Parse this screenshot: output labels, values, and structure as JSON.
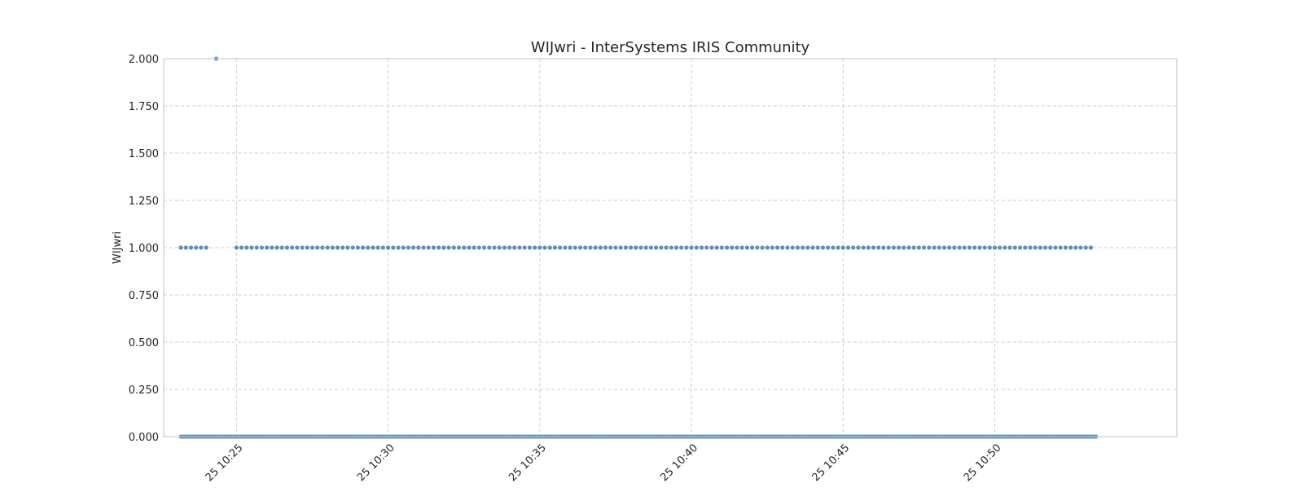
{
  "chart_data": {
    "type": "scatter",
    "title": "WIJwri - InterSystems IRIS Community",
    "xlabel": "",
    "ylabel": "WIJwri",
    "ylim": [
      0,
      2
    ],
    "xlim": [
      "10:22:36",
      "10:56:00"
    ],
    "y_ticks": [
      "0.000",
      "0.250",
      "0.500",
      "0.750",
      "1.000",
      "1.250",
      "1.500",
      "1.750",
      "2.000"
    ],
    "x_ticks": [
      {
        "time": "10:25:00",
        "label": "25 10:25"
      },
      {
        "time": "10:30:00",
        "label": "25 10:30"
      },
      {
        "time": "10:35:00",
        "label": "25 10:35"
      },
      {
        "time": "10:40:00",
        "label": "25 10:40"
      },
      {
        "time": "10:45:00",
        "label": "25 10:45"
      },
      {
        "time": "10:50:00",
        "label": "25 10:50"
      }
    ],
    "grid": true,
    "color": "#4a86b8",
    "series": [
      {
        "points": [
          {
            "x_start": "10:23:10",
            "x_end": "10:53:20",
            "step_seconds": 5,
            "y": 0
          },
          {
            "x_start": "10:23:10",
            "x_end": "10:24:00",
            "step_seconds": 10,
            "y": 1
          },
          {
            "x": "10:24:20",
            "y": 2
          },
          {
            "x_start": "10:25:00",
            "x_end": "10:53:10",
            "step_seconds": 10,
            "y": 1
          }
        ]
      }
    ]
  }
}
